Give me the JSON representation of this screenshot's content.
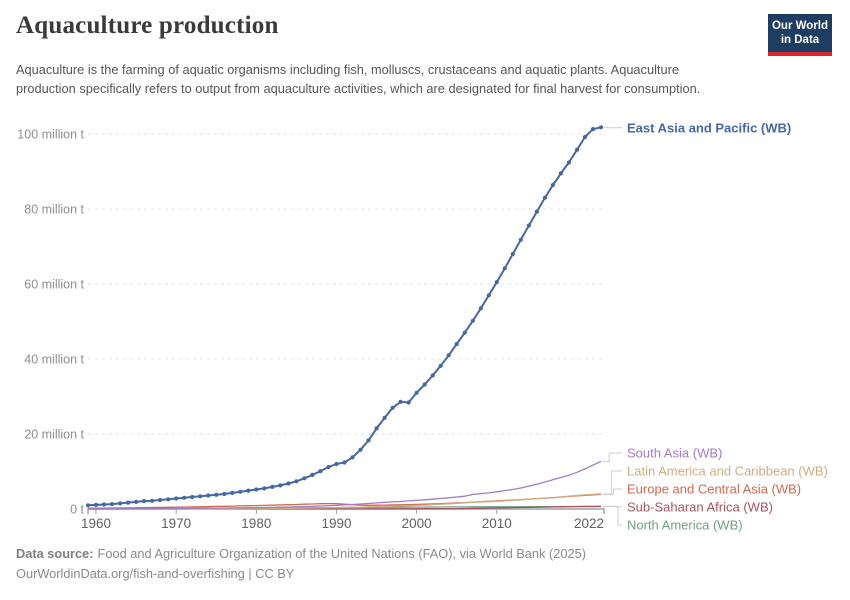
{
  "header": {
    "title": "Aquaculture production",
    "subtitle": "Aquaculture is the farming of aquatic organisms including fish, molluscs, crustaceans and aquatic plants. Aquaculture production specifically refers to output from aquaculture activities, which are designated for final harvest for consumption.",
    "logo": {
      "line1": "Our World",
      "line2": "in Data",
      "bg_color": "#1d3d63",
      "accent_color": "#d9262e"
    }
  },
  "footer": {
    "source_label": "Data source:",
    "source_text": "Food and Agriculture Organization of the United Nations (FAO), via World Bank (2025)",
    "link_text": "OurWorldinData.org/fish-and-overfishing | CC BY"
  },
  "chart_data": {
    "type": "line",
    "title": "Aquaculture production",
    "xlabel": "",
    "ylabel": "",
    "unit": "million t",
    "xlim": [
      1959,
      2023
    ],
    "ylim": [
      0,
      105
    ],
    "grid": "horizontal-dashed",
    "legend_position": "right-inline-labels",
    "x_ticks": [
      1960,
      1970,
      1980,
      1990,
      2000,
      2010,
      2022
    ],
    "y_ticks": [
      {
        "value": 0,
        "label": "0 t"
      },
      {
        "value": 20,
        "label": "20 million t"
      },
      {
        "value": 40,
        "label": "40 million t"
      },
      {
        "value": 60,
        "label": "60 million t"
      },
      {
        "value": 80,
        "label": "80 million t"
      },
      {
        "value": 100,
        "label": "100 million t"
      }
    ],
    "years": [
      1959,
      1960,
      1961,
      1962,
      1963,
      1964,
      1965,
      1966,
      1967,
      1968,
      1969,
      1970,
      1971,
      1972,
      1973,
      1974,
      1975,
      1976,
      1977,
      1978,
      1979,
      1980,
      1981,
      1982,
      1983,
      1984,
      1985,
      1986,
      1987,
      1988,
      1989,
      1990,
      1991,
      1992,
      1993,
      1994,
      1995,
      1996,
      1997,
      1998,
      1999,
      2000,
      2001,
      2002,
      2003,
      2004,
      2005,
      2006,
      2007,
      2008,
      2009,
      2010,
      2011,
      2012,
      2013,
      2014,
      2015,
      2016,
      2017,
      2018,
      2019,
      2020,
      2021,
      2022,
      2023
    ],
    "series": [
      {
        "name": "East Asia and Pacific (WB)",
        "color": "#4568a3",
        "markers": true,
        "values": [
          1.0,
          1.1,
          1.2,
          1.3,
          1.5,
          1.7,
          1.9,
          2.1,
          2.2,
          2.4,
          2.6,
          2.8,
          3.0,
          3.2,
          3.4,
          3.6,
          3.8,
          4.0,
          4.3,
          4.6,
          4.9,
          5.2,
          5.5,
          5.9,
          6.3,
          6.8,
          7.4,
          8.2,
          9.1,
          10.1,
          11.2,
          12.0,
          12.4,
          13.8,
          15.8,
          18.3,
          21.5,
          24.3,
          27.0,
          28.6,
          28.4,
          31.0,
          33.2,
          35.6,
          38.2,
          41.0,
          44.0,
          47.0,
          50.2,
          53.5,
          57.0,
          60.5,
          64.2,
          68.0,
          71.8,
          75.6,
          79.3,
          83.0,
          86.4,
          89.5,
          92.4,
          95.8,
          99.2,
          101.3,
          101.8
        ]
      },
      {
        "name": "South Asia (WB)",
        "color": "#a07bc7",
        "markers": false,
        "values": [
          0.05,
          0.06,
          0.06,
          0.07,
          0.08,
          0.09,
          0.1,
          0.11,
          0.12,
          0.13,
          0.14,
          0.15,
          0.17,
          0.18,
          0.2,
          0.22,
          0.24,
          0.26,
          0.28,
          0.31,
          0.34,
          0.37,
          0.4,
          0.44,
          0.48,
          0.53,
          0.58,
          0.64,
          0.71,
          0.79,
          0.88,
          0.98,
          1.08,
          1.2,
          1.33,
          1.47,
          1.62,
          1.78,
          1.9,
          2.0,
          2.15,
          2.3,
          2.45,
          2.62,
          2.8,
          3.0,
          3.2,
          3.42,
          3.9,
          4.1,
          4.3,
          4.6,
          4.9,
          5.2,
          5.6,
          6.1,
          6.6,
          7.2,
          7.8,
          8.4,
          9.0,
          9.8,
          10.7,
          11.7,
          12.7
        ]
      },
      {
        "name": "Latin America and Caribbean (WB)",
        "color": "#cfad80",
        "markers": false,
        "values": [
          0.01,
          0.01,
          0.01,
          0.01,
          0.02,
          0.02,
          0.02,
          0.02,
          0.03,
          0.03,
          0.03,
          0.04,
          0.04,
          0.05,
          0.05,
          0.06,
          0.07,
          0.08,
          0.09,
          0.1,
          0.11,
          0.12,
          0.13,
          0.15,
          0.17,
          0.19,
          0.21,
          0.24,
          0.27,
          0.3,
          0.33,
          0.37,
          0.42,
          0.47,
          0.52,
          0.58,
          0.64,
          0.7,
          0.76,
          0.82,
          0.88,
          0.95,
          1.05,
          1.15,
          1.28,
          1.4,
          1.52,
          1.65,
          1.78,
          1.88,
          1.95,
          2.05,
          2.18,
          2.32,
          2.46,
          2.6,
          2.74,
          2.88,
          3.0,
          3.15,
          3.45,
          3.6,
          3.75,
          3.9,
          4.02
        ]
      },
      {
        "name": "Europe and Central Asia (WB)",
        "color": "#d2694e",
        "markers": false,
        "values": [
          0.2,
          0.22,
          0.24,
          0.26,
          0.28,
          0.3,
          0.33,
          0.36,
          0.39,
          0.42,
          0.45,
          0.48,
          0.52,
          0.56,
          0.6,
          0.64,
          0.68,
          0.72,
          0.77,
          0.82,
          0.87,
          0.92,
          0.97,
          1.02,
          1.08,
          1.14,
          1.2,
          1.27,
          1.34,
          1.41,
          1.45,
          1.45,
          1.3,
          1.15,
          1.05,
          1.0,
          1.02,
          1.05,
          1.08,
          1.12,
          1.16,
          1.22,
          1.28,
          1.35,
          1.43,
          1.52,
          1.62,
          1.72,
          1.83,
          1.94,
          2.05,
          2.16,
          2.28,
          2.4,
          2.52,
          2.64,
          2.76,
          2.9,
          3.05,
          3.2,
          3.35,
          3.5,
          3.65,
          3.78,
          3.88
        ]
      },
      {
        "name": "Sub-Saharan Africa (WB)",
        "color": "#a85460",
        "markers": false,
        "values": [
          0.01,
          0.01,
          0.01,
          0.01,
          0.01,
          0.01,
          0.01,
          0.01,
          0.01,
          0.01,
          0.01,
          0.01,
          0.01,
          0.02,
          0.02,
          0.02,
          0.02,
          0.02,
          0.02,
          0.02,
          0.02,
          0.02,
          0.02,
          0.03,
          0.03,
          0.03,
          0.03,
          0.03,
          0.03,
          0.04,
          0.04,
          0.04,
          0.04,
          0.04,
          0.04,
          0.05,
          0.05,
          0.05,
          0.05,
          0.06,
          0.06,
          0.06,
          0.07,
          0.08,
          0.09,
          0.1,
          0.12,
          0.14,
          0.16,
          0.2,
          0.24,
          0.28,
          0.32,
          0.36,
          0.4,
          0.44,
          0.48,
          0.52,
          0.56,
          0.6,
          0.63,
          0.66,
          0.68,
          0.7,
          0.72
        ]
      },
      {
        "name": "North America (WB)",
        "color": "#6fa287",
        "markers": false,
        "values": [
          0.05,
          0.05,
          0.06,
          0.06,
          0.07,
          0.07,
          0.08,
          0.08,
          0.09,
          0.09,
          0.1,
          0.1,
          0.11,
          0.12,
          0.13,
          0.14,
          0.15,
          0.16,
          0.17,
          0.18,
          0.19,
          0.2,
          0.21,
          0.23,
          0.25,
          0.27,
          0.29,
          0.31,
          0.33,
          0.35,
          0.37,
          0.38,
          0.4,
          0.42,
          0.44,
          0.45,
          0.46,
          0.47,
          0.48,
          0.49,
          0.5,
          0.51,
          0.52,
          0.53,
          0.54,
          0.55,
          0.56,
          0.57,
          0.58,
          0.58,
          0.59,
          0.59,
          0.6,
          0.6,
          0.61,
          0.61,
          0.62,
          0.62,
          0.63,
          0.63,
          0.64,
          0.64,
          0.65,
          0.65,
          0.66
        ]
      }
    ]
  }
}
